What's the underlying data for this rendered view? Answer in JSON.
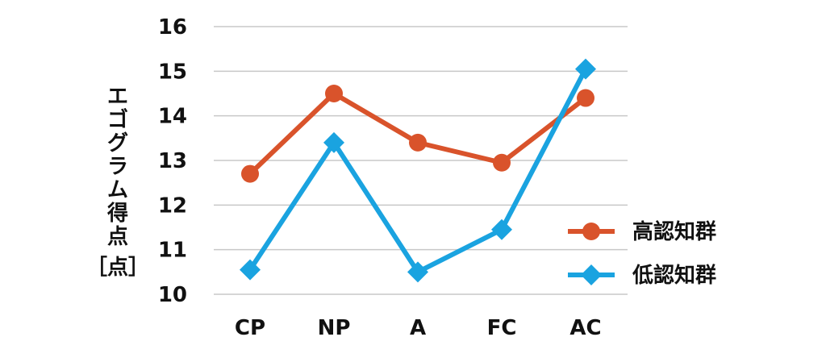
{
  "chart_data": {
    "type": "line",
    "title": "",
    "xlabel": "",
    "ylabel": "エゴグラム得点［点］",
    "categories": [
      "CP",
      "NP",
      "A",
      "FC",
      "AC"
    ],
    "ylim": [
      10,
      16
    ],
    "yticks": [
      10,
      11,
      12,
      13,
      14,
      15,
      16
    ],
    "grid": true,
    "legend_position": "bottom-right",
    "series": [
      {
        "name": "高認知群",
        "values": [
          12.7,
          14.5,
          13.4,
          12.95,
          14.4
        ],
        "color": "#d9532b",
        "marker": "circle"
      },
      {
        "name": "低認知群",
        "values": [
          10.55,
          13.4,
          10.5,
          11.45,
          15.05
        ],
        "color": "#1aa3e0",
        "marker": "diamond"
      }
    ]
  }
}
